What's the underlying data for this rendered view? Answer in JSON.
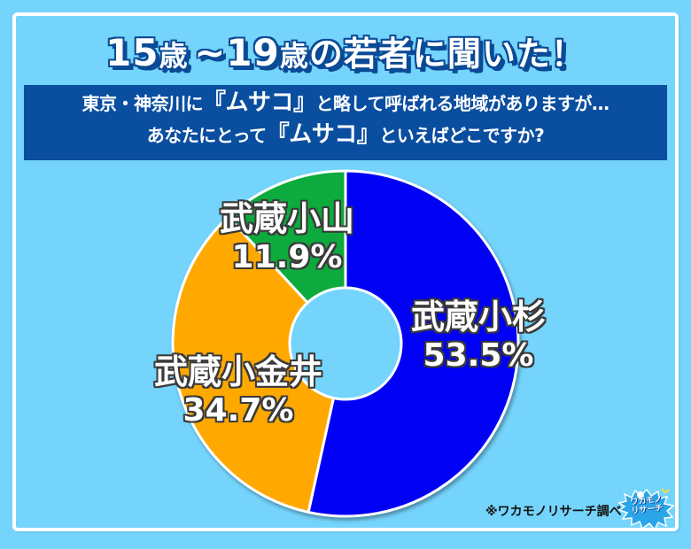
{
  "title": {
    "part1": "15",
    "part2": "歳",
    "part3": "~19",
    "part4": "歳",
    "part5": "の若者に聞いた！"
  },
  "question": {
    "line1_pre": "東京・神奈川に",
    "line1_em": "『ムサコ』",
    "line1_post": "と略して呼ばれる地域がありますが…",
    "line2_pre": "あなたにとって",
    "line2_em": "『ムサコ』",
    "line2_post": "といえばどこですか?"
  },
  "colors": {
    "background": "#74D4FC",
    "frame": "#FFFFFF",
    "question_box": "#0A4EA0",
    "title_outline": "#0A4A96",
    "musashi_kosugi": "#0000F5",
    "musashi_koganei": "#FFA900",
    "musashi_koyama": "#0AAA3C"
  },
  "chart_data": {
    "type": "pie",
    "variant": "donut",
    "title": "15歳~19歳の若者に聞いた！",
    "subtitle": "東京・神奈川に『ムサコ』と略して呼ばれる地域がありますが…あなたにとって『ムサコ』といえばどこですか?",
    "categories": [
      "武蔵小杉",
      "武蔵小金井",
      "武蔵小山"
    ],
    "values": [
      53.5,
      34.7,
      11.9
    ],
    "unit": "%",
    "colors": [
      "#0000F5",
      "#FFA900",
      "#0AAA3C"
    ],
    "start_angle": "12 o'clock",
    "direction": "clockwise",
    "labels": [
      {
        "name": "武蔵小杉",
        "value": "53.5%"
      },
      {
        "name": "武蔵小金井",
        "value": "34.7%"
      },
      {
        "name": "武蔵小山",
        "value": "11.9%"
      }
    ],
    "legend": "none (labels on slices)",
    "source_note": "※ワカモノリサーチ調べ"
  },
  "footer": {
    "source": "※ワカモノリサーチ調べ",
    "logo_text_line1": "ワカモノ",
    "logo_text_line2": "リサーチ"
  }
}
